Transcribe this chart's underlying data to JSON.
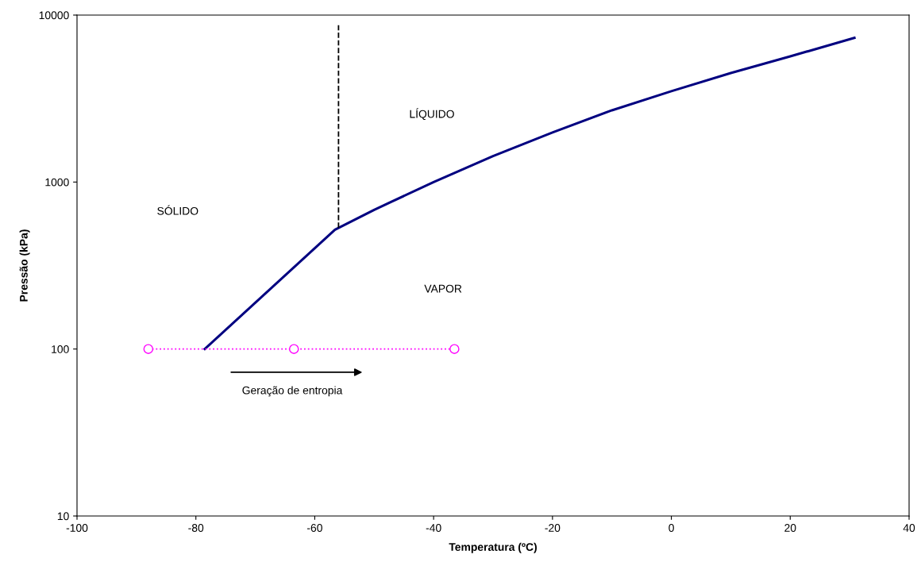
{
  "chart_data": {
    "type": "line",
    "xlabel": "Temperatura (ºC)",
    "ylabel": "Pressão (kPa)",
    "log": "y",
    "xlim": [
      -100,
      40
    ],
    "xticks": [
      -100,
      -80,
      -60,
      -40,
      -20,
      0,
      20,
      40
    ],
    "ylim": [
      10,
      10000
    ],
    "yticks": [
      10,
      100,
      1000,
      10000
    ],
    "grid": false,
    "series": [
      {
        "color": "#000080",
        "line_style": "solid",
        "marker": "none",
        "x": [
          -78.5,
          -56.6,
          -50,
          -40,
          -30,
          -20,
          -10,
          0,
          10,
          20,
          30.8
        ],
        "values": [
          100,
          518,
          682,
          1000,
          1430,
          1980,
          2690,
          3500,
          4500,
          5660,
          7300
        ]
      },
      {
        "color": "#000000",
        "line_style": "dashed",
        "marker": "none",
        "x": [
          -56,
          -56
        ],
        "values": [
          532,
          8700
        ]
      },
      {
        "color": "#ff00ff",
        "line_style": "dotted",
        "marker": "circle",
        "x": [
          -88,
          -63.5,
          -36.5
        ],
        "values": [
          100,
          100,
          100
        ]
      }
    ],
    "annotations": [
      "SÓLIDO",
      "LÍQUIDO",
      "VAPOR",
      "Geração de entropia"
    ]
  }
}
